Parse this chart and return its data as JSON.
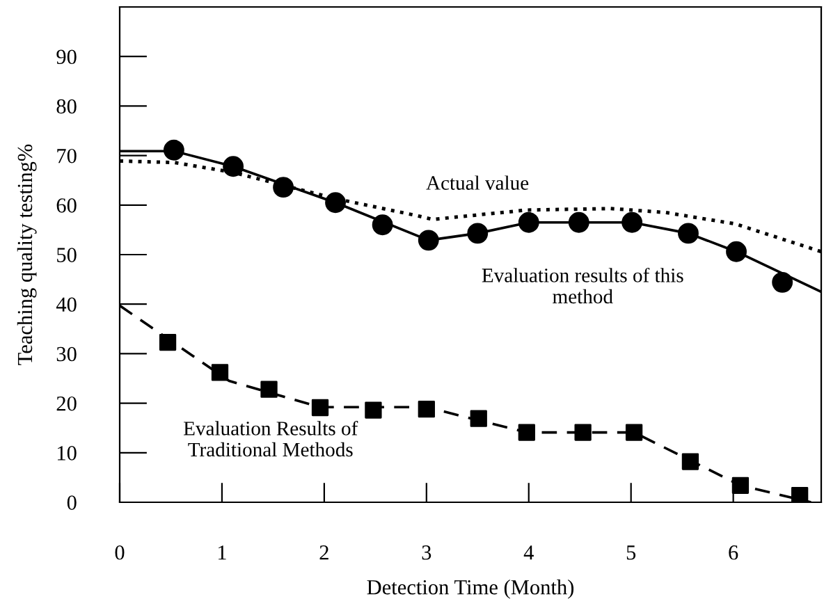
{
  "chart_data": {
    "type": "line",
    "xlabel": "Detection Time (Month)",
    "ylabel": "Teaching quality testing%",
    "xlim": [
      0,
      6.86
    ],
    "ylim": [
      0,
      100
    ],
    "xticks": [
      0,
      1,
      2,
      3,
      4,
      5,
      6
    ],
    "yticks": [
      0,
      10,
      20,
      30,
      40,
      50,
      60,
      70,
      80,
      90
    ],
    "grid": false,
    "legend": false,
    "series": [
      {
        "color": "#000000",
        "line_style": "dotted",
        "marker": "none",
        "x": [
          0,
          0.53,
          1.11,
          2.11,
          2.9,
          3.06,
          3.98,
          4.8,
          5.34,
          6.02,
          6.86
        ],
        "values": [
          68.9,
          68.6,
          66.6,
          61.3,
          57.9,
          57.1,
          59,
          59.3,
          58.5,
          56.2,
          50.6
        ]
      },
      {
        "color": "#000000",
        "line_style": "solid",
        "marker": "none",
        "x": [
          0,
          0.53,
          1.11,
          2.11,
          3.02,
          3.5,
          4.0,
          4.49,
          5.01,
          5.56,
          6.03,
          6.86
        ],
        "values": [
          70.9,
          70.9,
          67.8,
          60.5,
          52.9,
          54.3,
          56.5,
          56.5,
          56.5,
          54.3,
          50.6,
          42.5
        ]
      },
      {
        "type": "scatter",
        "color": "#000000",
        "marker": "circle",
        "x": [
          0.53,
          1.11,
          1.6,
          2.11,
          2.57,
          3.02,
          3.5,
          4.0,
          4.49,
          5.01,
          5.56,
          6.03,
          6.48
        ],
        "values": [
          71.1,
          67.8,
          63.6,
          60.5,
          56,
          52.9,
          54.3,
          56.5,
          56.5,
          56.5,
          54.3,
          50.6,
          44.4
        ]
      },
      {
        "color": "#000000",
        "line_style": "dashed",
        "marker": "none",
        "x": [
          0,
          1.07,
          1.96,
          3.0,
          3.98,
          5.03,
          6.07,
          6.76
        ],
        "values": [
          39.7,
          24.5,
          19.2,
          19.2,
          14.1,
          14.1,
          3.4,
          0
        ]
      },
      {
        "type": "scatter",
        "color": "#000000",
        "marker": "square",
        "x": [
          0.47,
          0.98,
          1.46,
          1.96,
          2.48,
          3.0,
          3.51,
          3.98,
          4.53,
          5.03,
          5.58,
          6.07,
          6.65
        ],
        "values": [
          32.3,
          26.2,
          22.8,
          19.1,
          18.6,
          18.8,
          16.9,
          14.1,
          14.1,
          14.1,
          8.2,
          3.4,
          1.4
        ]
      }
    ],
    "annotations": [
      "Actual value",
      "Evaluation results of this\nmethod",
      "Evaluation Results of\nTraditional Methods"
    ]
  }
}
